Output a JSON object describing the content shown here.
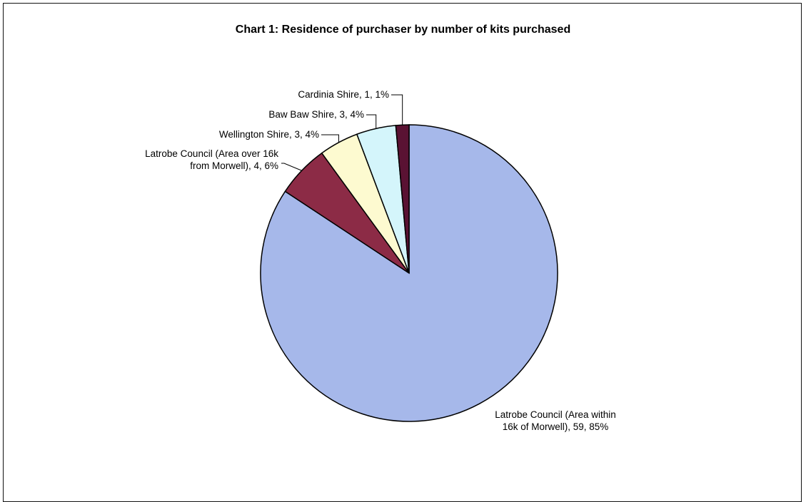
{
  "chart_data": {
    "type": "pie",
    "title": "Chart 1: Residence of purchaser by number of kits purchased",
    "start_angle_deg": 0,
    "direction": "clockwise",
    "slices": [
      {
        "label": "Latrobe Council (Area within 16k of Morwell), 59, 85%",
        "label_lines": [
          "Latrobe Council (Area within",
          "16k of Morwell), 59, 85%"
        ],
        "name": "Latrobe Council (Area within 16k of Morwell)",
        "value": 59,
        "percent": 85,
        "color": "#a6b8ea"
      },
      {
        "label": "Latrobe Council (Area over 16k from Morwell), 4, 6%",
        "label_lines": [
          "Latrobe Council (Area over 16k",
          "from Morwell), 4, 6%"
        ],
        "name": "Latrobe Council (Area over 16k from Morwell)",
        "value": 4,
        "percent": 6,
        "color": "#8c2b46"
      },
      {
        "label": "Wellington Shire, 3, 4%",
        "label_lines": [
          "Wellington Shire, 3, 4%"
        ],
        "name": "Wellington Shire",
        "value": 3,
        "percent": 4,
        "color": "#fdfad0"
      },
      {
        "label": "Baw Baw Shire, 3, 4%",
        "label_lines": [
          "Baw Baw Shire, 3, 4%"
        ],
        "name": "Baw Baw Shire",
        "value": 3,
        "percent": 4,
        "color": "#d4f5fb"
      },
      {
        "label": "Cardinia Shire, 1, 1%",
        "label_lines": [
          "Cardinia Shire, 1, 1%"
        ],
        "name": "Cardinia Shire",
        "value": 1,
        "percent": 1,
        "color": "#5a1233"
      }
    ],
    "legend": "none",
    "grid": false
  }
}
